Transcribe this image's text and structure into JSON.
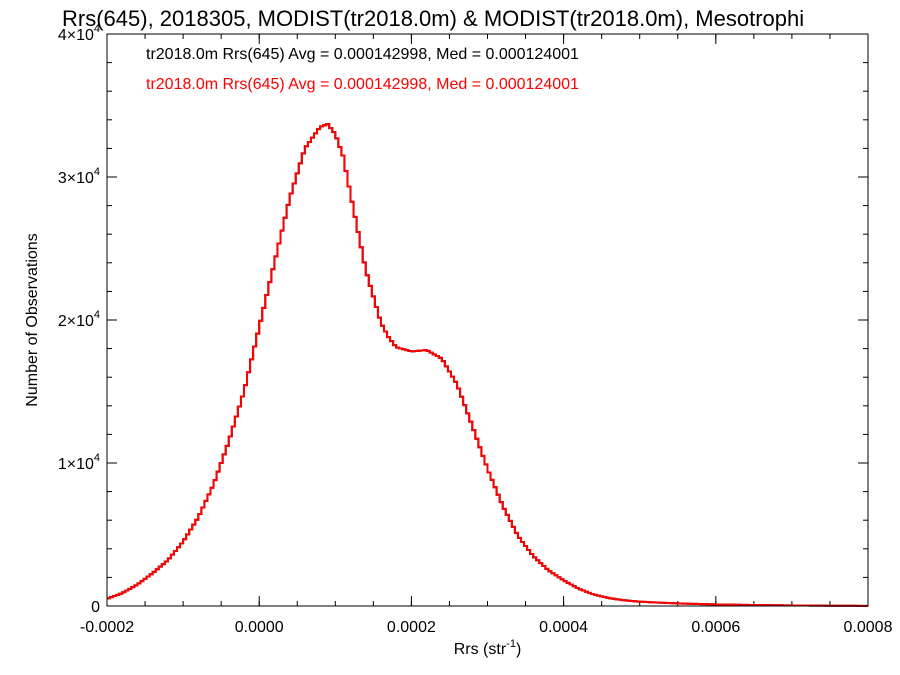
{
  "chart_data": {
    "type": "histogram",
    "title": "Rrs(645), 2018305, MODIST(tr2018.0m) & MODIST(tr2018.0m), Mesotrophi",
    "xlabel": "Rrs (str",
    "xlabel_exp": "-1",
    "xlabel_close": ")",
    "ylabel": "Number of Observations",
    "xlim": [
      -0.0002,
      0.0008
    ],
    "ylim": [
      0,
      40000
    ],
    "x_ticks": [
      {
        "value": -0.0002,
        "label": "-0.0002"
      },
      {
        "value": 0.0,
        "label": "0.0000"
      },
      {
        "value": 0.0002,
        "label": "0.0002"
      },
      {
        "value": 0.0004,
        "label": "0.0004"
      },
      {
        "value": 0.0006,
        "label": "0.0006"
      },
      {
        "value": 0.0008,
        "label": "0.0008"
      }
    ],
    "y_ticks": [
      {
        "value": 0,
        "mant": "0",
        "exp": ""
      },
      {
        "value": 10000,
        "mant": "1×10",
        "exp": "4"
      },
      {
        "value": 20000,
        "mant": "2×10",
        "exp": "4"
      },
      {
        "value": 30000,
        "mant": "3×10",
        "exp": "4"
      },
      {
        "value": 40000,
        "mant": "4×10",
        "exp": "4"
      }
    ],
    "x_minor_step": 5e-05,
    "y_minor_step": 2000,
    "grid": false,
    "legend_position": "top-left",
    "series": [
      {
        "name": "tr2018.0m Rrs(645) Avg = 0.000142998, Med = 0.000124001",
        "color": "#000000",
        "hidden_behind_overlay": true,
        "x": [
          -0.0002,
          -0.00018,
          -0.00016,
          -0.00014,
          -0.00012,
          -0.0001,
          -8e-05,
          -6e-05,
          -4e-05,
          -2e-05,
          0.0,
          2e-05,
          4e-05,
          6e-05,
          8e-05,
          9e-05,
          0.0001,
          0.00011,
          0.00012,
          0.00014,
          0.00016,
          0.00017,
          0.00018,
          0.0002,
          0.00022,
          0.00024,
          0.00026,
          0.00028,
          0.0003,
          0.00032,
          0.00034,
          0.00036,
          0.00038,
          0.0004,
          0.00042,
          0.00044,
          0.00046,
          0.00048,
          0.0005,
          0.00055,
          0.0006,
          0.00065,
          0.0007,
          0.00075,
          0.0008
        ],
        "y": [
          500,
          900,
          1500,
          2300,
          3200,
          4500,
          6200,
          8500,
          11500,
          15000,
          19500,
          24000,
          28500,
          32000,
          33500,
          33700,
          33000,
          31500,
          28800,
          23500,
          19800,
          18800,
          18100,
          17800,
          17900,
          17300,
          15500,
          12600,
          9600,
          7000,
          4900,
          3500,
          2500,
          1800,
          1200,
          800,
          550,
          400,
          300,
          180,
          110,
          70,
          40,
          20,
          10
        ]
      },
      {
        "name": "tr2018.0m Rrs(645) Avg = 0.000142998, Med = 0.000124001",
        "color": "#ff0000",
        "x": [
          -0.0002,
          -0.00018,
          -0.00016,
          -0.00014,
          -0.00012,
          -0.0001,
          -8e-05,
          -6e-05,
          -4e-05,
          -2e-05,
          0.0,
          2e-05,
          4e-05,
          6e-05,
          8e-05,
          9e-05,
          0.0001,
          0.00011,
          0.00012,
          0.00014,
          0.00016,
          0.00017,
          0.00018,
          0.0002,
          0.00022,
          0.00024,
          0.00026,
          0.00028,
          0.0003,
          0.00032,
          0.00034,
          0.00036,
          0.00038,
          0.0004,
          0.00042,
          0.00044,
          0.00046,
          0.00048,
          0.0005,
          0.00055,
          0.0006,
          0.00065,
          0.0007,
          0.00075,
          0.0008
        ],
        "y": [
          500,
          900,
          1500,
          2300,
          3200,
          4500,
          6200,
          8500,
          11500,
          15000,
          19500,
          24000,
          28500,
          32000,
          33500,
          33700,
          33000,
          31500,
          28800,
          23500,
          19800,
          18800,
          18100,
          17800,
          17900,
          17300,
          15500,
          12600,
          9600,
          7000,
          4900,
          3500,
          2500,
          1800,
          1200,
          800,
          550,
          400,
          300,
          180,
          110,
          70,
          40,
          20,
          10
        ]
      }
    ]
  }
}
